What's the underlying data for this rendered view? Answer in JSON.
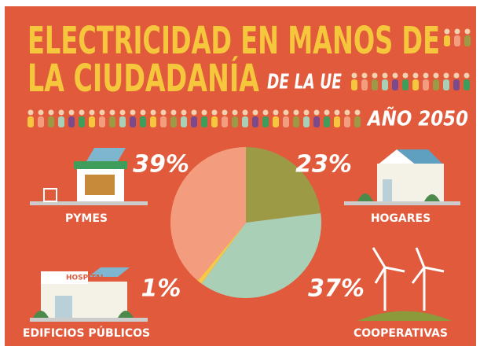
{
  "chart_data": {
    "type": "pie",
    "title": "ELECTRICIDAD EN MANOS DE",
    "title_line2": "LA CIUDADANÍA",
    "subtitle": "DE LA UE",
    "year": "AÑO 2050",
    "categories": [
      "HOGARES",
      "COOPERATIVAS",
      "EDIFICIOS PÚBLICOS",
      "PYMES"
    ],
    "values": [
      23,
      37,
      1,
      39
    ],
    "value_labels": [
      "23%",
      "37%",
      "1%",
      "39%"
    ],
    "colors": [
      "#9d9a46",
      "#a9cfb6",
      "#f4c84a",
      "#f49c7e"
    ],
    "annotations": [
      "HOSPITAL"
    ]
  }
}
